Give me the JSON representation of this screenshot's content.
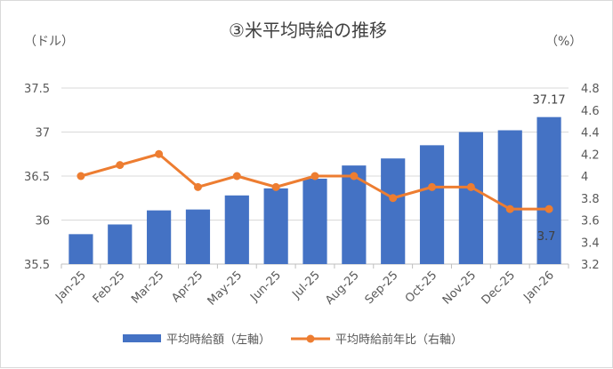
{
  "chart_data": {
    "type": "bar",
    "title": "③米平均時給の推移",
    "categories": [
      "Jan-25",
      "Feb-25",
      "Mar-25",
      "Apr-25",
      "May-25",
      "Jun-25",
      "Jul-25",
      "Aug-25",
      "Sep-25",
      "Oct-25",
      "Nov-25",
      "Dec-25",
      "Jan-26"
    ],
    "y_left": {
      "unit": "（ドル）",
      "ylim": [
        35.5,
        37.5
      ],
      "ticks": [
        "35.5",
        "36",
        "36.5",
        "37",
        "37.5"
      ],
      "tick_values": [
        35.5,
        36,
        36.5,
        37,
        37.5
      ]
    },
    "y_right": {
      "unit": "（%）",
      "ylim": [
        3.2,
        4.8
      ],
      "ticks": [
        "3.2",
        "3.4",
        "3.6",
        "3.8",
        "4",
        "4.2",
        "4.4",
        "4.6",
        "4.8"
      ],
      "tick_values": [
        3.2,
        3.4,
        3.6,
        3.8,
        4.0,
        4.2,
        4.4,
        4.6,
        4.8
      ]
    },
    "grid": true,
    "legend_position": "bottom",
    "series": [
      {
        "name": "平均時給額（左軸）",
        "type": "bar",
        "axis": "left",
        "color": "#4472C4",
        "values": [
          35.84,
          35.95,
          36.11,
          36.12,
          36.28,
          36.36,
          36.47,
          36.62,
          36.7,
          36.85,
          37.0,
          37.02,
          37.17
        ],
        "labels": [
          "",
          "",
          "",
          "",
          "",
          "",
          "",
          "",
          "",
          "",
          "",
          "",
          "37.17"
        ]
      },
      {
        "name": "平均時給前年比（右軸）",
        "type": "line",
        "axis": "right",
        "color": "#ED7D31",
        "values": [
          4.0,
          4.1,
          4.2,
          3.9,
          4.0,
          3.9,
          4.0,
          4.0,
          3.8,
          3.9,
          3.9,
          3.7,
          3.7
        ],
        "labels": [
          "",
          "",
          "",
          "",
          "",
          "",
          "",
          "",
          "",
          "",
          "",
          "",
          "3.7"
        ]
      }
    ]
  }
}
